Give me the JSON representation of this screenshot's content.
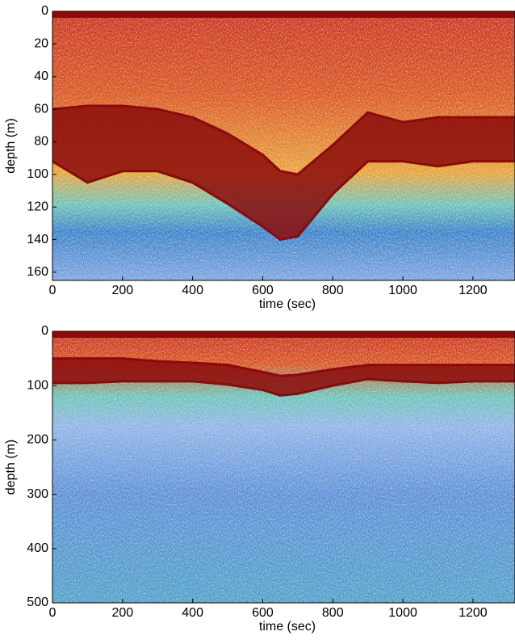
{
  "chart_data": [
    {
      "type": "echogram",
      "xlabel": "time (sec)",
      "ylabel": "depth (m)",
      "xlim": [
        0,
        1320
      ],
      "ylim": [
        165,
        0
      ],
      "xticks": [
        0,
        200,
        400,
        600,
        800,
        1000,
        1200
      ],
      "yticks": [
        0,
        20,
        40,
        60,
        80,
        100,
        120,
        140,
        160
      ],
      "x": [
        0,
        100,
        200,
        300,
        400,
        500,
        600,
        650,
        700,
        800,
        900,
        1000,
        1100,
        1200,
        1320
      ],
      "series": [
        {
          "color": "#8b0a0a",
          "values": [
            60,
            58,
            58,
            60,
            65,
            75,
            88,
            98,
            100,
            82,
            62,
            68,
            65,
            65,
            65
          ]
        },
        {
          "color": "#8b0a0a",
          "values": [
            92,
            105,
            98,
            98,
            105,
            118,
            132,
            140,
            138,
            112,
            92,
            92,
            95,
            92,
            92
          ]
        }
      ]
    },
    {
      "type": "echogram",
      "xlabel": "time (sec)",
      "ylabel": "depth (m)",
      "xlim": [
        0,
        1320
      ],
      "ylim": [
        500,
        0
      ],
      "xticks": [
        0,
        200,
        400,
        600,
        800,
        1000,
        1200
      ],
      "yticks": [
        0,
        100,
        200,
        300,
        400,
        500
      ],
      "x": [
        0,
        100,
        200,
        300,
        400,
        500,
        600,
        650,
        700,
        800,
        900,
        1000,
        1100,
        1200,
        1320
      ],
      "series": [
        {
          "color": "#8b0a0a",
          "values": [
            50,
            50,
            50,
            55,
            58,
            62,
            75,
            82,
            80,
            70,
            62,
            62,
            62,
            62,
            62
          ]
        },
        {
          "color": "#8b0a0a",
          "values": [
            95,
            95,
            92,
            92,
            92,
            98,
            108,
            118,
            115,
            100,
            88,
            92,
            95,
            92,
            92
          ]
        }
      ]
    }
  ]
}
